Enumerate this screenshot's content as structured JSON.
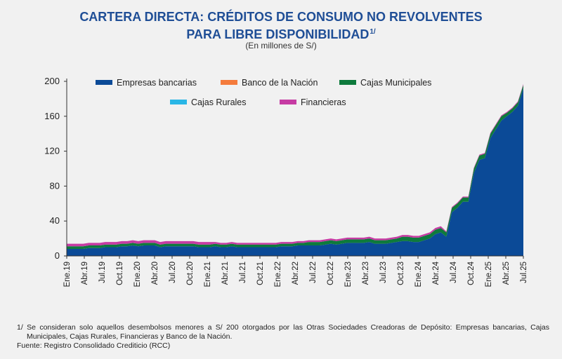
{
  "title_line1": "CARTERA DIRECTA: CRÉDITOS DE CONSUMO NO REVOLVENTES",
  "title_line2": "PARA LIBRE DISPONIBILIDAD",
  "title_footnote_mark": "1/",
  "subtitle": "(En millones de S/)",
  "footnote_1": "1/ Se consideran solo aquellos desembolsos menores a S/ 200 otorgados por las Otras Sociedades Creadoras de Depósito: Empresas bancarias, Cajas Municipales, Cajas Rurales, Financieras y Banco de la Nación.",
  "source": "Fuente: Registro Consolidado Crediticio (RCC)",
  "chart_data": {
    "type": "area",
    "stacked": true,
    "ylim": [
      0,
      200
    ],
    "yticks": [
      0,
      40,
      80,
      120,
      160,
      200
    ],
    "xtick_labels": [
      "Ene.19",
      "Abr.19",
      "Jul.19",
      "Oct.19",
      "Ene.20",
      "Abr.20",
      "Jul.20",
      "Oct.20",
      "Ene.21",
      "Abr.21",
      "Jul.21",
      "Oct.21",
      "Ene.22",
      "Abr.22",
      "Jul.22",
      "Oct.22",
      "Ene.23",
      "Abr.23",
      "Jul.23",
      "Oct.23",
      "Ene.24",
      "Abr.24",
      "Jul.24",
      "Oct.24",
      "Ene.25",
      "Abr.25",
      "Jul.25"
    ],
    "legend_position": "top",
    "grid": false,
    "series": [
      {
        "name": "Empresas bancarias",
        "color": "#0b4a97",
        "values": [
          8,
          8,
          8,
          8,
          9,
          9,
          9,
          10,
          10,
          10,
          11,
          11,
          12,
          11,
          12,
          12,
          12,
          10,
          11,
          11,
          11,
          11,
          11,
          11,
          10,
          10,
          10,
          11,
          10,
          10,
          11,
          10,
          10,
          10,
          10,
          10,
          10,
          10,
          10,
          11,
          11,
          11,
          12,
          12,
          12,
          12,
          12,
          13,
          14,
          13,
          14,
          15,
          15,
          15,
          15,
          16,
          14,
          14,
          14,
          15,
          16,
          17,
          17,
          16,
          16,
          18,
          20,
          25,
          27,
          22,
          50,
          55,
          62,
          62,
          95,
          110,
          112,
          135,
          145,
          155,
          160,
          165,
          172,
          192
        ]
      },
      {
        "name": "Banco de la Nación",
        "color": "#f47b3c",
        "values": [
          0,
          0,
          0,
          0,
          0,
          0,
          0,
          0,
          0,
          0,
          0,
          0,
          0,
          0,
          0,
          0,
          0,
          0,
          0,
          0,
          0,
          0,
          0,
          0,
          0,
          0,
          0,
          0,
          0,
          0,
          0,
          0,
          0,
          0,
          0,
          0,
          0,
          0,
          0,
          0,
          0,
          0,
          0,
          0,
          0,
          0,
          0,
          0,
          0,
          0,
          0,
          0,
          0,
          0,
          0,
          0,
          0,
          0,
          0,
          0,
          0,
          0,
          0,
          0,
          0,
          0,
          0,
          0,
          0,
          0,
          0,
          0,
          0,
          0,
          0,
          0,
          0,
          0,
          0,
          0,
          0,
          0,
          0,
          0
        ]
      },
      {
        "name": "Cajas Municipales",
        "color": "#0e7a3c",
        "values": [
          3,
          3,
          3,
          3,
          3,
          3,
          3,
          3,
          3,
          3,
          3,
          3,
          3,
          3,
          3,
          3,
          3,
          3,
          3,
          3,
          3,
          3,
          3,
          3,
          3,
          3,
          3,
          3,
          3,
          3,
          3,
          3,
          3,
          3,
          3,
          3,
          3,
          3,
          3,
          3,
          3,
          3,
          3,
          3,
          4,
          4,
          4,
          4,
          4,
          4,
          4,
          4,
          4,
          4,
          4,
          4,
          4,
          4,
          4,
          4,
          4,
          5,
          5,
          5,
          5,
          5,
          5,
          5,
          5,
          5,
          5,
          5,
          5,
          5,
          5,
          5,
          5,
          5,
          5,
          5,
          4,
          4,
          4,
          4
        ]
      },
      {
        "name": "Cajas Rurales",
        "color": "#29b6e6",
        "values": [
          0,
          0,
          0,
          0,
          0,
          0,
          0,
          0,
          0,
          0,
          0,
          0,
          0,
          0,
          0,
          0,
          0,
          0,
          0,
          0,
          0,
          0,
          0,
          0,
          0,
          0,
          0,
          0,
          0,
          0,
          0,
          0,
          0,
          0,
          0,
          0,
          0,
          0,
          0,
          0,
          0,
          0,
          0,
          0,
          0,
          0,
          0,
          0,
          0,
          0,
          0,
          0,
          0,
          0,
          0,
          0,
          0,
          0,
          0,
          0,
          0,
          0,
          0,
          0,
          0,
          0,
          0,
          0,
          0,
          0,
          0,
          0,
          0,
          0,
          0,
          0,
          0,
          0,
          0,
          0,
          0,
          0,
          0,
          0
        ]
      },
      {
        "name": "Financieras",
        "color": "#c63ba3",
        "values": [
          3,
          3,
          3,
          3,
          3,
          3,
          3,
          3,
          3,
          3,
          3,
          3,
          3,
          3,
          3,
          3,
          3,
          3,
          3,
          3,
          3,
          3,
          3,
          3,
          3,
          3,
          3,
          2,
          2,
          2,
          2,
          2,
          2,
          2,
          2,
          2,
          2,
          2,
          2,
          2,
          2,
          2,
          2,
          2,
          2,
          2,
          2,
          2,
          2,
          2,
          2,
          2,
          2,
          2,
          2,
          2,
          2,
          2,
          2,
          2,
          2,
          2,
          2,
          2,
          2,
          2,
          2,
          2,
          2,
          1,
          1,
          1,
          1,
          1,
          1,
          1,
          1,
          1,
          1,
          1,
          1,
          1,
          1,
          1
        ]
      }
    ]
  }
}
